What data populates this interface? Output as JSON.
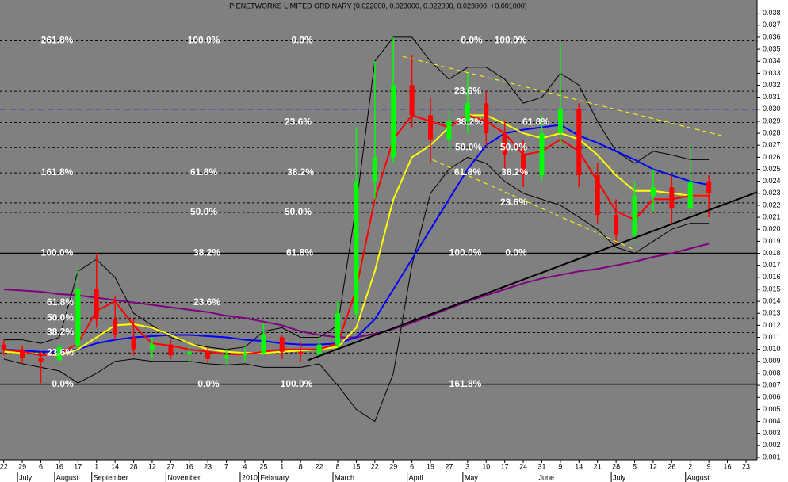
{
  "chart_data": {
    "type": "candlestick",
    "title": "PIENETWORKS LIMITED ORDINARY (0.022000, 0.023000, 0.022000, 0.023000, +0.001000)",
    "background": "#808080",
    "xlim": [
      -0.2,
      40.6
    ],
    "ylim": [
      0.0008,
      0.0391
    ],
    "xticks": [
      {
        "value": 0,
        "label": "22"
      },
      {
        "value": 1,
        "label": "29"
      },
      {
        "value": 2,
        "label": "6"
      },
      {
        "value": 3,
        "label": "16"
      },
      {
        "value": 4,
        "label": "17"
      },
      {
        "value": 5,
        "label": "1"
      },
      {
        "value": 6,
        "label": "14"
      },
      {
        "value": 7,
        "label": "28"
      },
      {
        "value": 8,
        "label": "12"
      },
      {
        "value": 9,
        "label": "27"
      },
      {
        "value": 10,
        "label": "16"
      },
      {
        "value": 11,
        "label": "23"
      },
      {
        "value": 12,
        "label": "7"
      },
      {
        "value": 13,
        "label": "4"
      },
      {
        "value": 14,
        "label": "25"
      },
      {
        "value": 15,
        "label": "1"
      },
      {
        "value": 16,
        "label": "8"
      },
      {
        "value": 17,
        "label": "22"
      },
      {
        "value": 18,
        "label": "8"
      },
      {
        "value": 19,
        "label": "15"
      },
      {
        "value": 20,
        "label": "22"
      },
      {
        "value": 21,
        "label": "29"
      },
      {
        "value": 22,
        "label": "6"
      },
      {
        "value": 23,
        "label": "19"
      },
      {
        "value": 24,
        "label": "27"
      },
      {
        "value": 25,
        "label": "3"
      },
      {
        "value": 26,
        "label": "10"
      },
      {
        "value": 27,
        "label": "17"
      },
      {
        "value": 28,
        "label": "24"
      },
      {
        "value": 29,
        "label": "31"
      },
      {
        "value": 30,
        "label": "9"
      },
      {
        "value": 31,
        "label": "14"
      },
      {
        "value": 32,
        "label": "21"
      },
      {
        "value": 33,
        "label": "28"
      },
      {
        "value": 34,
        "label": "5"
      },
      {
        "value": 35,
        "label": "12"
      },
      {
        "value": 36,
        "label": "26"
      },
      {
        "value": 37,
        "label": "2"
      },
      {
        "value": 38,
        "label": "9"
      },
      {
        "value": 39,
        "label": "16"
      },
      {
        "value": 40,
        "label": "23"
      }
    ],
    "month_ticks": [
      {
        "value": 1,
        "label": "July"
      },
      {
        "value": 3,
        "label": "August"
      },
      {
        "value": 5,
        "label": "September"
      },
      {
        "value": 9,
        "label": "November"
      },
      {
        "value": 13,
        "label": "2010"
      },
      {
        "value": 14,
        "label": "February"
      },
      {
        "value": 18,
        "label": "March"
      },
      {
        "value": 22,
        "label": "April"
      },
      {
        "value": 25,
        "label": "May"
      },
      {
        "value": 29,
        "label": "June"
      },
      {
        "value": 33,
        "label": "July"
      },
      {
        "value": 37,
        "label": "August"
      }
    ],
    "yticks": [
      0.001,
      0.002,
      0.003,
      0.004,
      0.005,
      0.006,
      0.007,
      0.008,
      0.009,
      {
        "value": 0.01,
        "label": "0.010"
      },
      0.011,
      0.012,
      0.013,
      0.014,
      0.015,
      0.016,
      0.017,
      0.018,
      0.019,
      {
        "value": 0.02,
        "label": "0.020"
      },
      0.021,
      0.022,
      0.023,
      0.024,
      0.025,
      0.026,
      0.027,
      0.028,
      0.029,
      {
        "value": 0.03,
        "label": "0.030"
      },
      0.031,
      0.032,
      0.033,
      0.034,
      0.035,
      0.036,
      0.037,
      0.038
    ],
    "x": [
      0,
      1,
      2,
      3,
      4,
      5,
      6,
      7,
      8,
      9,
      10,
      11,
      12,
      13,
      14,
      15,
      16,
      17,
      18,
      19,
      20,
      21,
      22,
      23,
      24,
      25,
      26,
      27,
      28,
      29,
      30,
      31,
      32,
      33,
      34,
      35,
      36,
      37,
      38
    ],
    "candles": {
      "up_color": "#00ff00",
      "down_color": "#ff0000",
      "open": [
        0.0104,
        0.01,
        0.0093,
        0.0091,
        0.0103,
        0.015,
        0.0125,
        0.011,
        0.01,
        0.0104,
        0.0096,
        0.0098,
        0.0093,
        0.0095,
        0.0097,
        0.011,
        0.0098,
        0.0096,
        0.0104,
        0.013,
        0.024,
        0.026,
        0.032,
        0.0295,
        0.0275,
        0.029,
        0.0305,
        0.028,
        0.0262,
        0.0245,
        0.028,
        0.03,
        0.0245,
        0.0212,
        0.0195,
        0.0228,
        0.0235,
        0.0218,
        0.024
      ],
      "high": [
        0.0108,
        0.0103,
        0.0098,
        0.0105,
        0.017,
        0.018,
        0.0145,
        0.0125,
        0.011,
        0.0108,
        0.0102,
        0.0102,
        0.01,
        0.0102,
        0.0122,
        0.0112,
        0.0106,
        0.0112,
        0.014,
        0.0285,
        0.034,
        0.036,
        0.0345,
        0.031,
        0.03,
        0.033,
        0.0315,
        0.029,
        0.0275,
        0.0295,
        0.0355,
        0.0305,
        0.0255,
        0.0225,
        0.024,
        0.025,
        0.0245,
        0.027,
        0.0245
      ],
      "low": [
        0.0095,
        0.0088,
        0.0072,
        0.009,
        0.01,
        0.0118,
        0.0108,
        0.0095,
        0.0092,
        0.0092,
        0.0088,
        0.0088,
        0.0088,
        0.009,
        0.0095,
        0.0092,
        0.009,
        0.0094,
        0.01,
        0.0125,
        0.0225,
        0.0255,
        0.0285,
        0.0255,
        0.0265,
        0.028,
        0.027,
        0.025,
        0.0235,
        0.024,
        0.027,
        0.0235,
        0.0205,
        0.0188,
        0.019,
        0.0215,
        0.0205,
        0.0215,
        0.021
      ],
      "close": [
        0.01,
        0.0093,
        0.009,
        0.0102,
        0.015,
        0.0125,
        0.0112,
        0.01,
        0.0104,
        0.0095,
        0.0098,
        0.0092,
        0.0095,
        0.0097,
        0.0112,
        0.0098,
        0.0096,
        0.0104,
        0.013,
        0.024,
        0.026,
        0.032,
        0.0295,
        0.0275,
        0.029,
        0.0305,
        0.028,
        0.0262,
        0.0245,
        0.028,
        0.03,
        0.0245,
        0.0212,
        0.0195,
        0.0228,
        0.0235,
        0.0218,
        0.024,
        0.023
      ]
    },
    "series": [
      {
        "color": "#800080",
        "width": 2,
        "values": [
          0.015,
          0.0149,
          0.0148,
          0.0146,
          0.0145,
          0.0143,
          0.0141,
          0.0139,
          0.0137,
          0.0135,
          0.0133,
          0.0131,
          0.0128,
          0.0126,
          0.0123,
          0.012,
          0.0115,
          0.0112,
          0.011,
          0.011,
          0.0113,
          0.0117,
          0.0122,
          0.0128,
          0.0134,
          0.014,
          0.0145,
          0.015,
          0.0155,
          0.0159,
          0.0162,
          0.0165,
          0.0167,
          0.017,
          0.0173,
          0.0177,
          0.018,
          0.0184,
          0.0188
        ]
      },
      {
        "color": "#000000",
        "width": 1,
        "values": [
          0.0108,
          0.0108,
          0.0105,
          0.011,
          0.0165,
          0.0175,
          0.016,
          0.013,
          0.012,
          0.011,
          0.0105,
          0.0102,
          0.01,
          0.0102,
          0.0115,
          0.0118,
          0.011,
          0.011,
          0.012,
          0.022,
          0.034,
          0.036,
          0.036,
          0.034,
          0.0325,
          0.0335,
          0.0335,
          0.0325,
          0.0305,
          0.031,
          0.033,
          0.032,
          0.029,
          0.0265,
          0.0255,
          0.0265,
          0.0262,
          0.0258,
          0.0258
        ]
      },
      {
        "color": "#000000",
        "width": 1,
        "values": [
          0.0092,
          0.0088,
          0.0085,
          0.0082,
          0.0072,
          0.008,
          0.009,
          0.0092,
          0.009,
          0.009,
          0.009,
          0.0088,
          0.0087,
          0.0088,
          0.0085,
          0.0085,
          0.0085,
          0.0088,
          0.007,
          0.005,
          0.004,
          0.008,
          0.017,
          0.023,
          0.025,
          0.026,
          0.0255,
          0.024,
          0.023,
          0.0225,
          0.022,
          0.021,
          0.02,
          0.0185,
          0.018,
          0.019,
          0.02,
          0.0205,
          0.0205
        ]
      },
      {
        "color": "#0000ff",
        "width": 2,
        "values": [
          0.01,
          0.0099,
          0.0098,
          0.0098,
          0.01,
          0.0105,
          0.0108,
          0.011,
          0.0111,
          0.0112,
          0.0112,
          0.0111,
          0.011,
          0.0108,
          0.0107,
          0.0105,
          0.0104,
          0.0104,
          0.0105,
          0.011,
          0.0125,
          0.015,
          0.0175,
          0.02,
          0.0225,
          0.025,
          0.027,
          0.028,
          0.0283,
          0.0285,
          0.0287,
          0.0278,
          0.0272,
          0.0265,
          0.0258,
          0.025,
          0.0245,
          0.024,
          0.0237
        ]
      },
      {
        "color": "#ffff00",
        "width": 2,
        "values": [
          0.0098,
          0.0097,
          0.0096,
          0.0095,
          0.01,
          0.011,
          0.012,
          0.0121,
          0.0118,
          0.0112,
          0.0105,
          0.01,
          0.0098,
          0.0097,
          0.0097,
          0.0098,
          0.0099,
          0.01,
          0.0102,
          0.0118,
          0.0165,
          0.0225,
          0.026,
          0.027,
          0.0285,
          0.0295,
          0.0295,
          0.0288,
          0.028,
          0.0276,
          0.028,
          0.0275,
          0.0262,
          0.0245,
          0.0232,
          0.0232,
          0.023,
          0.0228,
          0.0228
        ]
      },
      {
        "color": "#ff0000",
        "width": 2,
        "values": [
          0.01,
          0.0098,
          0.0095,
          0.0096,
          0.0105,
          0.0132,
          0.014,
          0.012,
          0.0105,
          0.0103,
          0.01,
          0.0098,
          0.0096,
          0.0096,
          0.0098,
          0.01,
          0.01,
          0.01,
          0.0105,
          0.015,
          0.0225,
          0.0275,
          0.0295,
          0.029,
          0.0285,
          0.0295,
          0.029,
          0.028,
          0.0262,
          0.0265,
          0.0275,
          0.0265,
          0.024,
          0.0215,
          0.0208,
          0.0225,
          0.0225,
          0.0228,
          0.0228
        ]
      }
    ],
    "trendlines": [
      {
        "color": "#000000",
        "dashed": false,
        "x": [
          16.4,
          40.6
        ],
        "y": [
          0.0091,
          0.0231
        ]
      },
      {
        "color": "#ffff00",
        "dashed": true,
        "x": [
          21.5,
          38.7
        ],
        "y": [
          0.0344,
          0.0278
        ]
      },
      {
        "color": "#ffff00",
        "dashed": true,
        "x": [
          23.1,
          34.0
        ],
        "y": [
          0.0258,
          0.0183
        ]
      }
    ],
    "hlines": [
      {
        "value": 0.03,
        "color": "#0000ff"
      }
    ],
    "fib_levels": [
      {
        "value": 0.0357,
        "style": "dashed",
        "labels": [
          "261.8%",
          "100.0%",
          "0.0%",
          "0.0%",
          "100.0%"
        ]
      },
      {
        "value": 0.0315,
        "style": "dashed",
        "labels": [
          "23.6%"
        ]
      },
      {
        "value": 0.0289,
        "style": "dashed",
        "labels": [
          "23.6%",
          "38.2%",
          "61.8%"
        ]
      },
      {
        "value": 0.0268,
        "style": "dashed",
        "labels": [
          "50.0%",
          "50.0%"
        ]
      },
      {
        "value": 0.0247,
        "style": "dashed",
        "labels": [
          "161.8%",
          "61.8%",
          "38.2%",
          "61.8%",
          "38.2%"
        ]
      },
      {
        "value": 0.0222,
        "style": "dashed",
        "labels": [
          "23.6%"
        ]
      },
      {
        "value": 0.0214,
        "style": "dashed",
        "labels": [
          "50.0%",
          "50.0%"
        ]
      },
      {
        "value": 0.018,
        "style": "solid",
        "labels": [
          "100.0%",
          "38.2%",
          "61.8%",
          "100.0%",
          "0.0%"
        ]
      },
      {
        "value": 0.0139,
        "style": "dashed",
        "labels": [
          "61.8%",
          "23.6%"
        ]
      },
      {
        "value": 0.0126,
        "style": "dashed",
        "labels": [
          "50.0%"
        ]
      },
      {
        "value": 0.0114,
        "style": "dashed",
        "labels": [
          "38.2%"
        ]
      },
      {
        "value": 0.0097,
        "style": "dashed",
        "labels": [
          "23.6%"
        ]
      },
      {
        "value": 0.0071,
        "style": "solid",
        "labels": [
          "0.0%",
          "0.0%",
          "100.0%",
          "161.8%"
        ]
      }
    ]
  }
}
